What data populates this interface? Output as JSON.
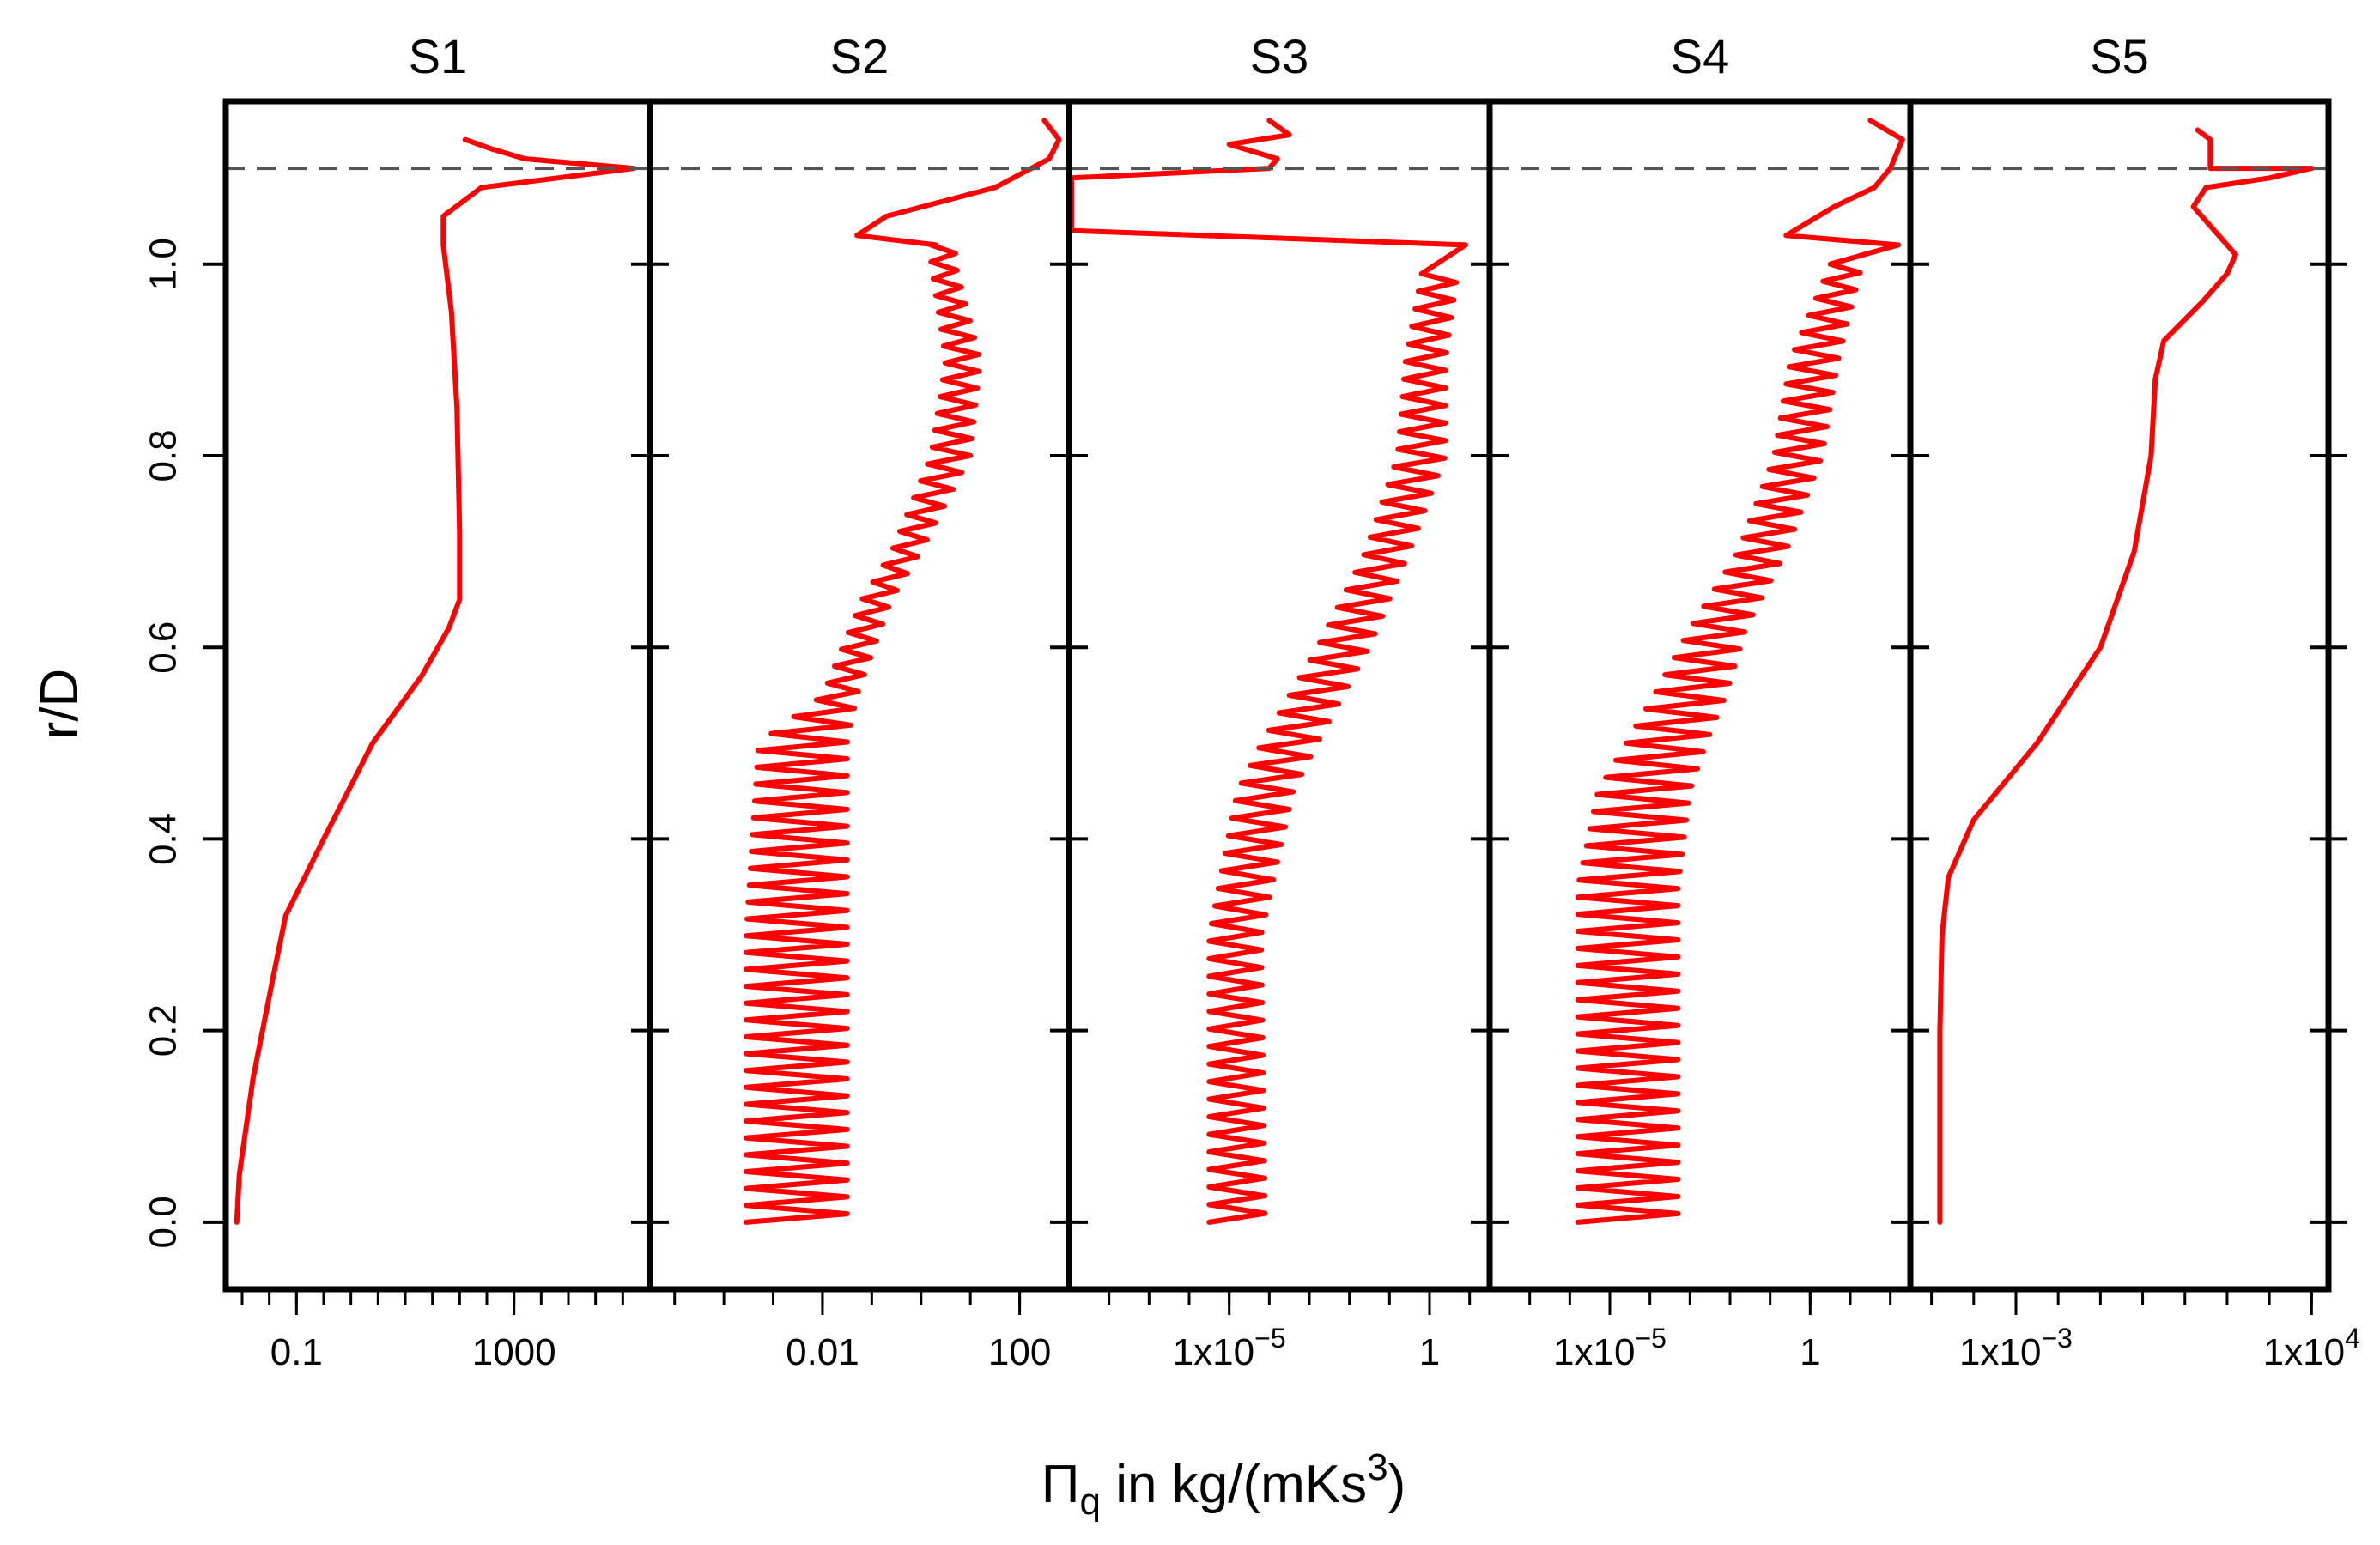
{
  "chart_data": {
    "type": "line",
    "ylabel": "r/D",
    "xlabel": {
      "symbol": "Π",
      "subscript": "q",
      "unit_prefix": " in kg/(mKs",
      "unit_power": "3",
      "unit_suffix": ")"
    },
    "ylim": [
      -0.07,
      1.17
    ],
    "yticks": [
      {
        "value": 0.0,
        "label": "0.0"
      },
      {
        "value": 0.2,
        "label": "0.2"
      },
      {
        "value": 0.4,
        "label": "0.4"
      },
      {
        "value": 0.6,
        "label": "0.6"
      },
      {
        "value": 0.8,
        "label": "0.8"
      },
      {
        "value": 1.0,
        "label": "1.0"
      }
    ],
    "reference_line": {
      "y": 1.1,
      "style": "dashed",
      "color": "#555555"
    },
    "line_color": "#ff0000",
    "panels": [
      {
        "title": "S1",
        "xscale": "log10",
        "xlim_log10": [
          -2.3,
          5.5
        ],
        "minor_ticks_log10": [
          -2.0,
          -1.5,
          -1.0,
          -0.5,
          0.0,
          0.5,
          1.0,
          1.5,
          2.0,
          2.5,
          3.0,
          3.5,
          4.0,
          4.5,
          5.0
        ],
        "labeled_ticks": [
          {
            "log10": -1,
            "label": "0.1"
          },
          {
            "log10": 3,
            "label": "1000"
          }
        ],
        "curve": {
          "kind": "smooth",
          "points": [
            [
              -2.1,
              0.0
            ],
            [
              -2.05,
              0.05
            ],
            [
              -1.8,
              0.15
            ],
            [
              -1.45,
              0.25
            ],
            [
              -1.2,
              0.32
            ],
            [
              -0.5,
              0.4
            ],
            [
              0.4,
              0.5
            ],
            [
              1.3,
              0.57
            ],
            [
              1.8,
              0.62
            ],
            [
              2.0,
              0.65
            ],
            [
              2.0,
              0.72
            ],
            [
              1.95,
              0.85
            ],
            [
              1.85,
              0.95
            ],
            [
              1.7,
              1.02
            ],
            [
              1.7,
              1.05
            ],
            [
              2.4,
              1.08
            ],
            [
              5.2,
              1.1
            ],
            [
              3.2,
              1.11
            ],
            [
              2.6,
              1.12
            ],
            [
              2.1,
              1.13
            ]
          ]
        }
      },
      {
        "title": "S2",
        "xscale": "log10",
        "xlim_log10": [
          -5.5,
          3.0
        ],
        "minor_ticks_log10": [
          -5,
          -4,
          -3,
          -2,
          -1,
          0,
          1,
          2
        ],
        "labeled_ticks": [
          {
            "log10": -2,
            "label": "0.01"
          },
          {
            "log10": 2,
            "label": "100"
          }
        ],
        "curve": {
          "kind": "oscillating",
          "start_y": 0.0,
          "end_y": 1.02,
          "cycles": 58,
          "bands": [
            [
              0.0,
              -3.55,
              -1.5
            ],
            [
              0.3,
              -3.55,
              -1.5
            ],
            [
              0.5,
              -3.3,
              -1.5
            ],
            [
              0.55,
              -2.0,
              -1.3
            ],
            [
              0.65,
              -1.2,
              -0.6
            ],
            [
              0.7,
              -0.6,
              0.0
            ],
            [
              0.8,
              0.2,
              1.0
            ],
            [
              0.9,
              0.5,
              1.2
            ],
            [
              1.0,
              0.2,
              0.7
            ],
            [
              1.02,
              0.2,
              0.7
            ]
          ],
          "tail": [
            [
              0.3,
              1.02
            ],
            [
              -1.3,
              1.03
            ],
            [
              -0.7,
              1.05
            ],
            [
              1.5,
              1.08
            ],
            [
              2.6,
              1.11
            ],
            [
              2.8,
              1.13
            ],
            [
              2.5,
              1.15
            ]
          ]
        }
      },
      {
        "title": "S3",
        "xscale": "log10",
        "xlim_log10": [
          -9.0,
          1.5
        ],
        "minor_ticks_log10": [
          -8,
          -7,
          -6,
          -5,
          -4,
          -3,
          -2,
          -1,
          0,
          1
        ],
        "labeled_ticks": [
          {
            "log10": -5,
            "label": "1x10",
            "exp": "−5"
          },
          {
            "log10": 0,
            "label": "1",
            "exp": ""
          }
        ],
        "curve": {
          "kind": "oscillating",
          "start_y": 0.0,
          "end_y": 0.99,
          "cycles": 54,
          "bands": [
            [
              0.0,
              -5.5,
              -4.1
            ],
            [
              0.3,
              -5.5,
              -4.2
            ],
            [
              0.45,
              -4.8,
              -3.4
            ],
            [
              0.5,
              -4.2,
              -2.8
            ],
            [
              0.6,
              -2.8,
              -1.5
            ],
            [
              0.7,
              -1.6,
              -0.5
            ],
            [
              0.8,
              -0.8,
              0.4
            ],
            [
              0.9,
              -0.6,
              0.4
            ],
            [
              0.99,
              -0.2,
              0.7
            ]
          ],
          "tail": [
            [
              0.9,
              1.02
            ],
            [
              -9.0,
              1.035
            ],
            [
              -9.0,
              1.09
            ],
            [
              -4.0,
              1.1
            ],
            [
              -3.8,
              1.11
            ],
            [
              -5.0,
              1.125
            ],
            [
              -3.5,
              1.135
            ],
            [
              -4.0,
              1.15
            ]
          ]
        }
      },
      {
        "title": "S4",
        "xscale": "log10",
        "xlim_log10": [
          -8.0,
          2.5
        ],
        "minor_ticks_log10": [
          -7,
          -6,
          -5,
          -4,
          -3,
          -2,
          -1,
          0,
          1,
          2
        ],
        "labeled_ticks": [
          {
            "log10": -5,
            "label": "1x10",
            "exp": "−5"
          },
          {
            "log10": 0,
            "label": "1",
            "exp": ""
          }
        ],
        "curve": {
          "kind": "oscillating",
          "start_y": 0.0,
          "end_y": 1.0,
          "cycles": 56,
          "bands": [
            [
              0.0,
              -5.8,
              -3.3
            ],
            [
              0.35,
              -5.8,
              -3.3
            ],
            [
              0.45,
              -5.3,
              -3.0
            ],
            [
              0.5,
              -4.6,
              -2.6
            ],
            [
              0.55,
              -3.9,
              -2.1
            ],
            [
              0.62,
              -3.0,
              -1.6
            ],
            [
              0.7,
              -1.8,
              -0.6
            ],
            [
              0.8,
              -0.9,
              0.3
            ],
            [
              0.9,
              -0.5,
              0.7
            ],
            [
              1.0,
              0.5,
              1.3
            ]
          ],
          "tail": [
            [
              2.2,
              1.02
            ],
            [
              -0.6,
              1.03
            ],
            [
              0.6,
              1.06
            ],
            [
              1.6,
              1.08
            ],
            [
              2.0,
              1.1
            ],
            [
              2.3,
              1.13
            ],
            [
              1.5,
              1.15
            ]
          ]
        }
      },
      {
        "title": "S5",
        "xscale": "log10",
        "xlim_log10": [
          -5.5,
          4.4
        ],
        "minor_ticks_log10": [
          -5,
          -4,
          -3,
          -2,
          -1,
          0,
          1,
          2,
          3,
          4
        ],
        "labeled_ticks": [
          {
            "log10": -3,
            "label": "1x10",
            "exp": "−3"
          },
          {
            "log10": 4,
            "label": "1x10",
            "exp": "4"
          }
        ],
        "curve": {
          "kind": "smooth",
          "points": [
            [
              -4.8,
              0.0
            ],
            [
              -4.8,
              0.2
            ],
            [
              -4.75,
              0.3
            ],
            [
              -4.6,
              0.36
            ],
            [
              -4.0,
              0.42
            ],
            [
              -2.5,
              0.5
            ],
            [
              -1.0,
              0.6
            ],
            [
              -0.2,
              0.7
            ],
            [
              0.2,
              0.8
            ],
            [
              0.3,
              0.88
            ],
            [
              0.5,
              0.92
            ],
            [
              1.4,
              0.96
            ],
            [
              2.0,
              0.99
            ],
            [
              2.2,
              1.01
            ],
            [
              1.6,
              1.04
            ],
            [
              1.2,
              1.06
            ],
            [
              1.5,
              1.08
            ],
            [
              3.0,
              1.09
            ],
            [
              4.0,
              1.1
            ],
            [
              1.6,
              1.1
            ],
            [
              1.6,
              1.13
            ],
            [
              1.3,
              1.14
            ]
          ]
        }
      }
    ]
  }
}
